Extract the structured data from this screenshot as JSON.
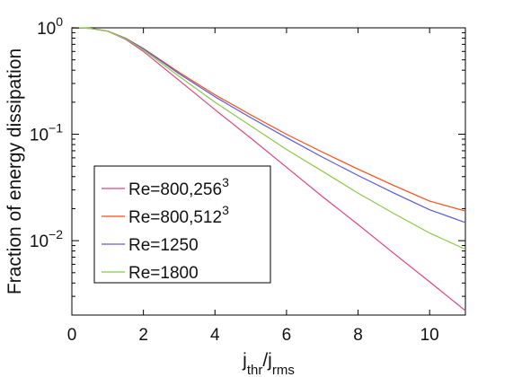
{
  "chart_data": {
    "type": "line",
    "xlabel": {
      "base": "j",
      "sub1": "thr",
      "sep": "/j",
      "sub2": "rms"
    },
    "ylabel": "Fraction of energy dissipation",
    "xlim": [
      0,
      11
    ],
    "ylim": [
      0.002,
      1
    ],
    "yscale": "log",
    "grid": false,
    "legend_position": "lower-left",
    "x_ticks": [
      {
        "value": 0,
        "label": "0"
      },
      {
        "value": 2,
        "label": "2"
      },
      {
        "value": 4,
        "label": "4"
      },
      {
        "value": 6,
        "label": "6"
      },
      {
        "value": 8,
        "label": "8"
      },
      {
        "value": 10,
        "label": "10"
      }
    ],
    "y_ticks": [
      {
        "value": 1,
        "base": "10",
        "exp": "0"
      },
      {
        "value": 0.1,
        "base": "10",
        "exp": "−1"
      },
      {
        "value": 0.01,
        "base": "10",
        "exp": "−2"
      }
    ],
    "series": [
      {
        "name": "Re=800,256",
        "name_sup": "3",
        "color": "#e0457a",
        "points": [
          [
            0,
            1
          ],
          [
            0.5,
            0.99
          ],
          [
            1,
            0.93
          ],
          [
            1.5,
            0.78
          ],
          [
            2,
            0.6
          ],
          [
            3,
            0.32
          ],
          [
            4,
            0.17
          ],
          [
            5,
            0.092
          ],
          [
            6,
            0.049
          ],
          [
            7,
            0.026
          ],
          [
            8,
            0.0142
          ],
          [
            9,
            0.0076
          ],
          [
            10,
            0.0041
          ],
          [
            11,
            0.0022
          ]
        ]
      },
      {
        "name": "Re=800,512",
        "name_sup": "3",
        "color": "#ff4a16",
        "points": [
          [
            0,
            1
          ],
          [
            0.5,
            0.99
          ],
          [
            1,
            0.93
          ],
          [
            1.5,
            0.8
          ],
          [
            2,
            0.64
          ],
          [
            3,
            0.38
          ],
          [
            4,
            0.235
          ],
          [
            5,
            0.152
          ],
          [
            6,
            0.1
          ],
          [
            7,
            0.068
          ],
          [
            8,
            0.047
          ],
          [
            9,
            0.033
          ],
          [
            10,
            0.0235
          ],
          [
            11,
            0.019
          ]
        ]
      },
      {
        "name": "Re=1250",
        "name_sup": "",
        "color": "#5a5ad8",
        "points": [
          [
            0,
            1
          ],
          [
            0.5,
            0.99
          ],
          [
            1,
            0.93
          ],
          [
            1.5,
            0.8
          ],
          [
            2,
            0.635
          ],
          [
            3,
            0.37
          ],
          [
            4,
            0.225
          ],
          [
            5,
            0.143
          ],
          [
            6,
            0.093
          ],
          [
            7,
            0.061
          ],
          [
            8,
            0.041
          ],
          [
            9,
            0.028
          ],
          [
            10,
            0.0195
          ],
          [
            11,
            0.0148
          ]
        ]
      },
      {
        "name": "Re=1800",
        "name_sup": "",
        "color": "#8ec84a",
        "points": [
          [
            0,
            1
          ],
          [
            0.5,
            0.99
          ],
          [
            1,
            0.93
          ],
          [
            1.5,
            0.79
          ],
          [
            2,
            0.62
          ],
          [
            3,
            0.35
          ],
          [
            4,
            0.2
          ],
          [
            5,
            0.12
          ],
          [
            6,
            0.072
          ],
          [
            7,
            0.045
          ],
          [
            8,
            0.028
          ],
          [
            9,
            0.018
          ],
          [
            10,
            0.0118
          ],
          [
            11,
            0.0083
          ]
        ]
      }
    ]
  }
}
